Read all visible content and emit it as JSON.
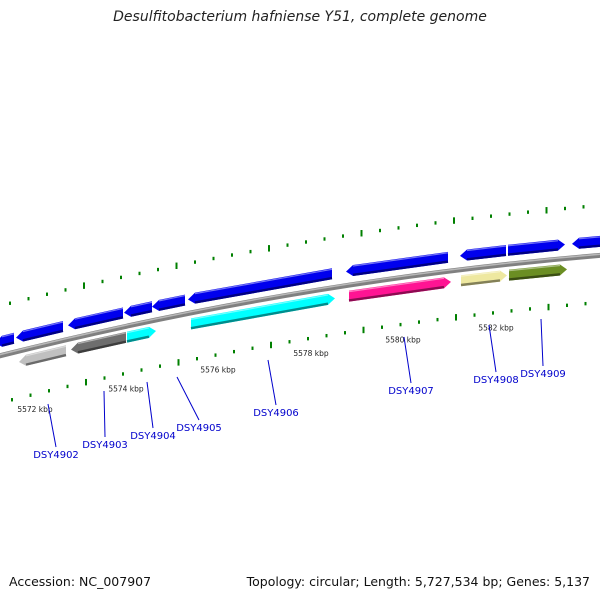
{
  "title": "Desulfitobacterium hafniense Y51, complete genome",
  "footer": {
    "accession": "Accession: NC_007907",
    "summary": "Topology: circular; Length: 5,727,534 bp; Genes: 5,137"
  },
  "scale_labels": [
    "5572 kbp",
    "5574 kbp",
    "5576 kbp",
    "5578 kbp",
    "5580 kbp",
    "5582 kbp"
  ],
  "genes": [
    {
      "id": "DSY4902",
      "color": "#c0c0c0"
    },
    {
      "id": "DSY4903",
      "color": "#6e6e6e"
    },
    {
      "id": "DSY4904",
      "color": "#00ffff"
    },
    {
      "id": "DSY4905",
      "color": "#0000ee"
    },
    {
      "id": "DSY4906",
      "color": "#00ffff"
    },
    {
      "id": "DSY4907",
      "color": "#ff1493"
    },
    {
      "id": "DSY4908",
      "color": "#eee8a0"
    },
    {
      "id": "DSY4909",
      "color": "#6b8e23"
    }
  ],
  "colors": {
    "forward_gene": "#0000ee",
    "label": "#0000cc",
    "tick": "#008000",
    "backbone": "#808080"
  }
}
